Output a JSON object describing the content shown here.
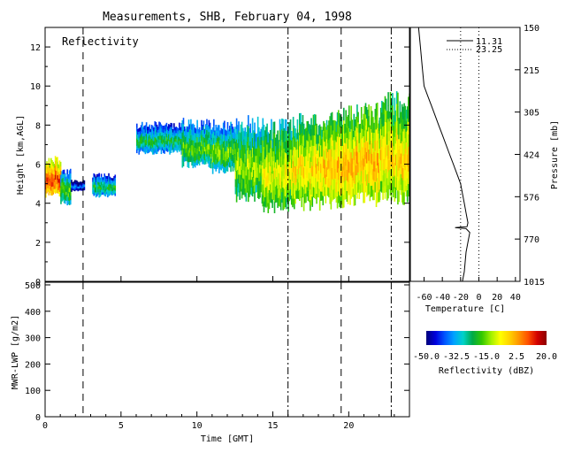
{
  "title": "Measurements, SHB, February 04, 1998",
  "colors": {
    "background": "#ffffff",
    "axes": "#000000"
  },
  "chart_data": [
    {
      "type": "heatmap",
      "annotation": "Reflectivity",
      "xlabel": "Time [GMT]",
      "ylabel": "Height [km,AGL]",
      "xlim": [
        0,
        24
      ],
      "ylim": [
        0,
        13
      ],
      "xticks": [
        0,
        5,
        10,
        15,
        20
      ],
      "yticks": [
        0,
        2,
        4,
        6,
        8,
        10,
        12
      ],
      "dashed_times": [
        2.5,
        19.5
      ],
      "dashdot_times": [
        16,
        22.8
      ],
      "cloud_regions": [
        {
          "start": 0.0,
          "end": 1.0,
          "base": 4.3,
          "top": 6.5,
          "peak": 12.0
        },
        {
          "start": 1.0,
          "end": 1.7,
          "base": 3.9,
          "top": 5.8,
          "peak": -15.0
        },
        {
          "start": 1.7,
          "end": 2.6,
          "base": 4.6,
          "top": 5.2,
          "peak": -35.0
        },
        {
          "start": 3.1,
          "end": 4.6,
          "base": 4.3,
          "top": 5.6,
          "peak": -20.0
        },
        {
          "start": 6.0,
          "end": 9.0,
          "base": 6.5,
          "top": 8.2,
          "peak": -20.0
        },
        {
          "start": 9.0,
          "end": 11.0,
          "base": 5.8,
          "top": 8.4,
          "peak": -15.0
        },
        {
          "start": 11.0,
          "end": 12.5,
          "base": 5.5,
          "top": 8.3,
          "peak": -14.0
        },
        {
          "start": 12.5,
          "end": 14.3,
          "base": 4.0,
          "top": 8.6,
          "peak": -10.0
        },
        {
          "start": 14.3,
          "end": 16.3,
          "base": 3.5,
          "top": 8.4,
          "peak": -5.0
        },
        {
          "start": 16.3,
          "end": 18.3,
          "base": 3.6,
          "top": 8.8,
          "peak": -1.0
        },
        {
          "start": 18.3,
          "end": 20.3,
          "base": 3.7,
          "top": 9.0,
          "peak": 2.0
        },
        {
          "start": 20.3,
          "end": 22.0,
          "base": 3.8,
          "top": 9.2,
          "peak": 3.0
        },
        {
          "start": 22.0,
          "end": 24.0,
          "base": 3.9,
          "top": 9.8,
          "peak": 0.0
        }
      ]
    },
    {
      "type": "line",
      "xlabel": "Temperature [C]",
      "ylabel": "Pressure [mb]",
      "xlim": [
        -75,
        45
      ],
      "xticks": [
        -60,
        -40,
        -20,
        0,
        20,
        40
      ],
      "pressure_ticks": [
        "150",
        "215",
        "305",
        "424",
        "576",
        "770",
        "1015"
      ],
      "legend": [
        "11.31",
        "23.25"
      ],
      "series": [
        {
          "name": "11.31",
          "style": "solid",
          "height_km": [
            0,
            0.5,
            1,
            1.5,
            2,
            2.5,
            2.7,
            2.75,
            2.8,
            3,
            3.5,
            4,
            4.5,
            5,
            5.5,
            6,
            6.5,
            7,
            7.5,
            8,
            8.5,
            9,
            9.5,
            10,
            11,
            12,
            13
          ],
          "temp_c": [
            -18,
            -16,
            -15,
            -14,
            -12,
            -10,
            -14,
            -26,
            -13,
            -12,
            -14,
            -16,
            -18,
            -20,
            -24,
            -28,
            -32,
            -36,
            -40,
            -44,
            -48,
            -52,
            -56,
            -60,
            -62,
            -64,
            -66
          ]
        },
        {
          "name": "23.25",
          "style": "dotted",
          "temp_c": [
            -20,
            0
          ]
        }
      ]
    },
    {
      "type": "line",
      "xlabel": "Time [GMT]",
      "ylabel": "MWR-LWP [g/m2]",
      "xlim": [
        0,
        24
      ],
      "ylim": [
        0,
        510
      ],
      "xticks": [
        0,
        5,
        10,
        15,
        20
      ],
      "yticks": [
        0,
        100,
        200,
        300,
        400,
        500
      ],
      "values": []
    }
  ],
  "colorbar": {
    "xlabel": "Reflectivity (dBZ)",
    "min": -50,
    "max": 20,
    "tick_labels": [
      "-50.0",
      "-32.5",
      "-15.0",
      "2.5",
      "20.0"
    ],
    "stops": [
      "#00007a",
      "#0000dd",
      "#0055ff",
      "#00a2ff",
      "#00d2c8",
      "#00aa46",
      "#32c800",
      "#a0f000",
      "#ffff00",
      "#ffd200",
      "#ff9600",
      "#ff5000",
      "#d20000",
      "#8c0000"
    ]
  }
}
